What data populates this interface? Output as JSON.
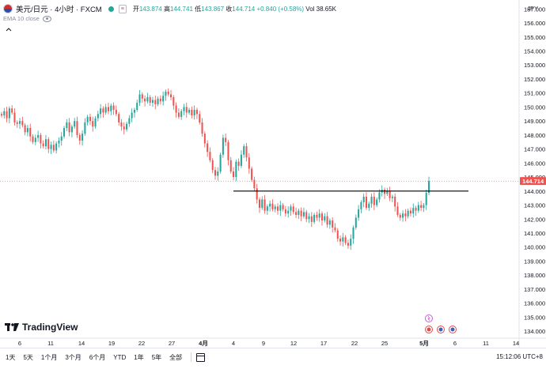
{
  "header": {
    "symbol_title": "美元/日元 · 4小时 · FXCM",
    "mini_button": "≡",
    "open_label": "开",
    "open_value": "143.874",
    "high_label": "高",
    "high_value": "144.741",
    "low_label": "低",
    "low_value": "143.867",
    "close_label": "收",
    "close_value": "144.714",
    "change": "+0.840 (+0.58%)",
    "volume": "Vol 38.65K"
  },
  "indicator": {
    "label": "EMA 10 close"
  },
  "currency": "JPY",
  "price_tag": "144.714",
  "branding": {
    "logo_text": "TradingView"
  },
  "toolbar": {
    "timeframes": [
      "1天",
      "5天",
      "1个月",
      "3个月",
      "6个月",
      "YTD",
      "1年",
      "5年",
      "全部"
    ],
    "clock": "15:12:06 UTC+8"
  },
  "colors": {
    "up": "#26a69a",
    "down": "#ef5350",
    "price_tag_bg": "#ef5350",
    "line": "#000000"
  },
  "chart_data": {
    "type": "candlestick",
    "instrument": "美元/日元",
    "interval": "4小时",
    "ylim": [
      133.5,
      157.3
    ],
    "y_ticks": [
      134.0,
      135.0,
      136.0,
      137.0,
      138.0,
      139.0,
      140.0,
      141.0,
      142.0,
      143.0,
      144.0,
      145.0,
      146.0,
      147.0,
      148.0,
      149.0,
      150.0,
      151.0,
      152.0,
      153.0,
      154.0,
      155.0,
      156.0,
      157.0
    ],
    "x_ticks": [
      "6",
      "11",
      "14",
      "19",
      "22",
      "27",
      "4月",
      "4",
      "9",
      "12",
      "17",
      "22",
      "25",
      "5月",
      "6",
      "11",
      "14"
    ],
    "horizontal_line": 144.0,
    "last_price": 144.714,
    "closes": [
      149.4,
      149.7,
      149.2,
      149.9,
      149.6,
      148.9,
      148.8,
      149.0,
      148.7,
      148.2,
      148.5,
      147.9,
      147.5,
      147.8,
      148.0,
      147.4,
      147.2,
      147.7,
      147.0,
      147.3,
      146.9,
      147.4,
      147.6,
      147.9,
      148.5,
      148.9,
      148.2,
      148.6,
      149.0,
      148.0,
      147.6,
      148.1,
      148.9,
      149.3,
      149.0,
      148.6,
      149.2,
      149.5,
      149.9,
      149.6,
      150.0,
      149.7,
      150.1,
      149.8,
      149.5,
      148.9,
      148.6,
      148.4,
      148.8,
      149.2,
      149.6,
      149.8,
      150.3,
      150.9,
      150.6,
      150.4,
      150.7,
      150.3,
      150.5,
      150.2,
      150.6,
      150.4,
      150.8,
      151.1,
      150.9,
      150.7,
      150.1,
      149.6,
      149.3,
      149.7,
      150.0,
      149.6,
      149.8,
      149.4,
      149.8,
      149.5,
      148.9,
      148.1,
      147.4,
      146.8,
      146.2,
      145.5,
      145.1,
      145.4,
      146.6,
      147.8,
      147.5,
      146.2,
      145.4,
      145.0,
      146.1,
      145.8,
      146.6,
      147.2,
      146.4,
      145.6,
      144.8,
      144.2,
      143.4,
      142.8,
      143.4,
      142.6,
      142.9,
      143.1,
      142.7,
      142.9,
      142.6,
      143.0,
      142.7,
      142.4,
      142.6,
      142.9,
      142.5,
      142.3,
      142.6,
      142.2,
      142.5,
      142.0,
      142.2,
      141.8,
      142.3,
      142.1,
      142.4,
      141.9,
      142.2,
      141.6,
      141.9,
      141.4,
      141.2,
      140.6,
      140.4,
      140.7,
      140.3,
      140.1,
      140.6,
      141.4,
      142.1,
      142.7,
      143.2,
      143.6,
      142.8,
      143.1,
      143.6,
      143.0,
      143.4,
      143.9,
      144.1,
      143.8,
      144.0,
      143.5,
      143.6,
      142.9,
      142.3,
      142.1,
      142.4,
      142.2,
      142.6,
      142.4,
      142.8,
      142.6,
      143.0,
      142.8,
      143.0,
      143.874,
      144.714
    ]
  }
}
